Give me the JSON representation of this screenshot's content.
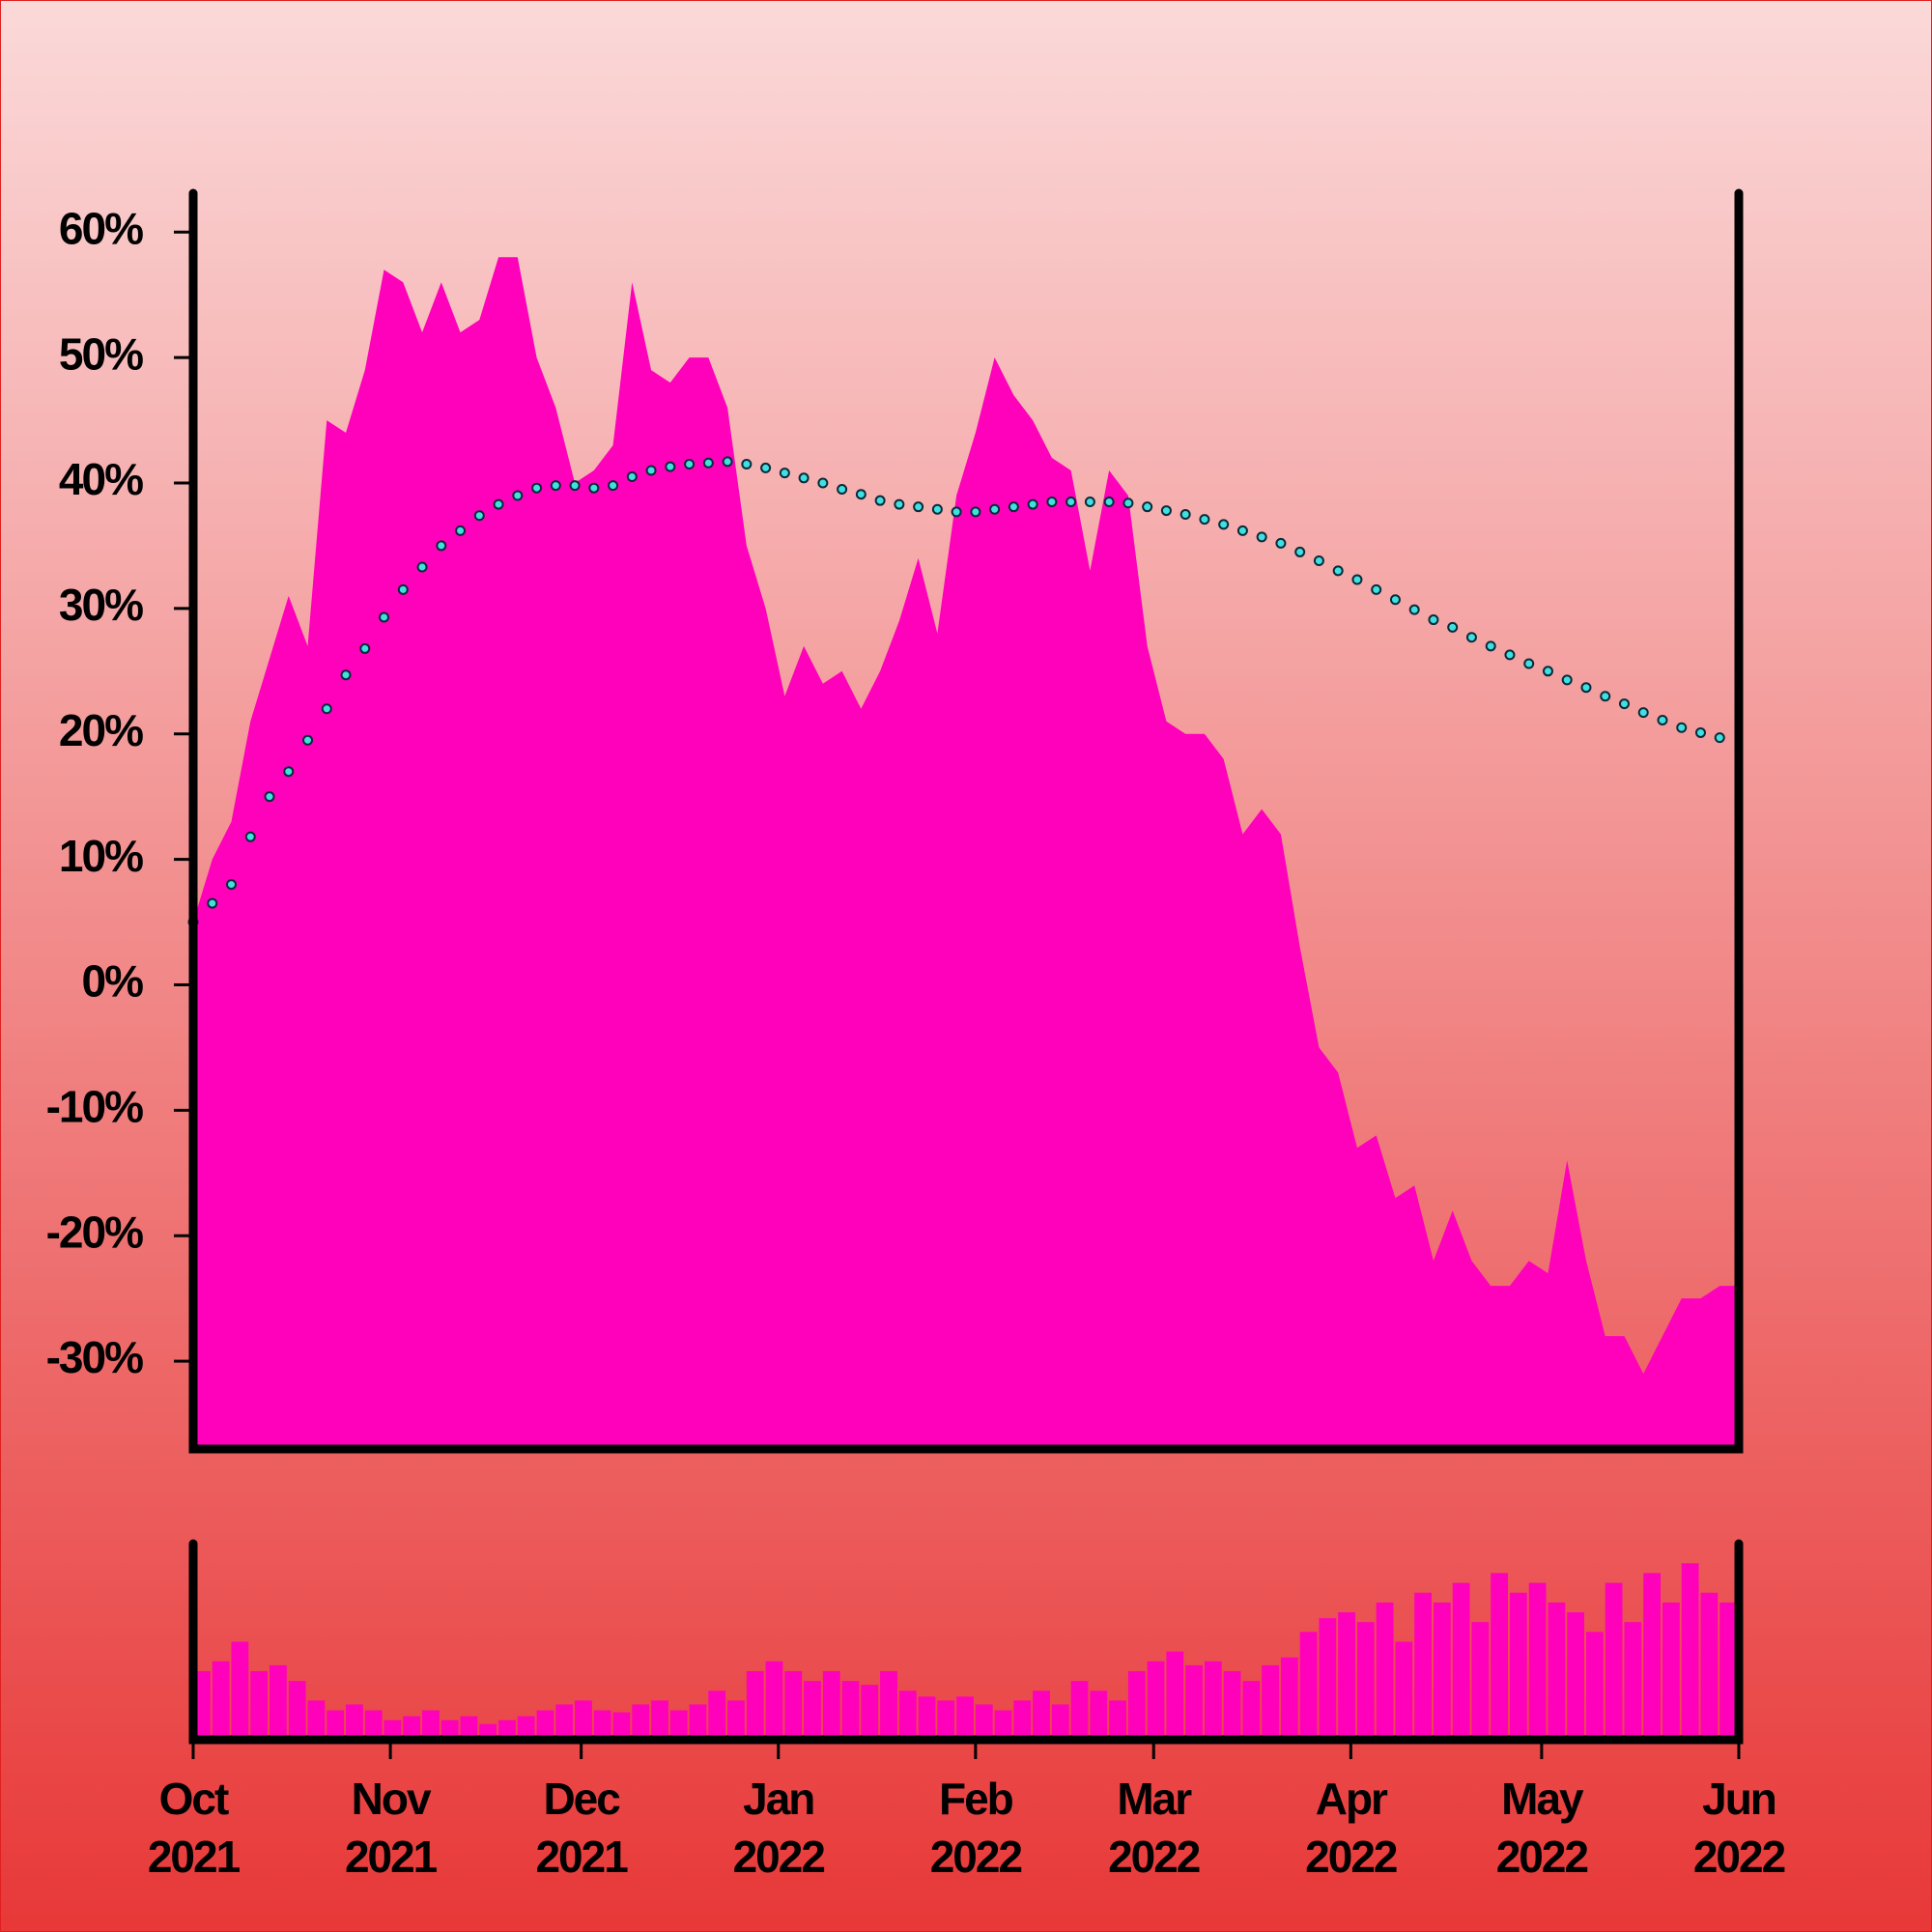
{
  "chart_data": {
    "type": "area",
    "x": [
      "2021-10-01",
      "2021-10-04",
      "2021-10-07",
      "2021-10-10",
      "2021-10-13",
      "2021-10-16",
      "2021-10-19",
      "2021-10-22",
      "2021-10-25",
      "2021-10-28",
      "2021-10-31",
      "2021-11-03",
      "2021-11-06",
      "2021-11-09",
      "2021-11-12",
      "2021-11-15",
      "2021-11-18",
      "2021-11-21",
      "2021-11-24",
      "2021-11-27",
      "2021-11-30",
      "2021-12-03",
      "2021-12-06",
      "2021-12-09",
      "2021-12-12",
      "2021-12-15",
      "2021-12-18",
      "2021-12-21",
      "2021-12-24",
      "2021-12-27",
      "2021-12-30",
      "2022-01-02",
      "2022-01-05",
      "2022-01-08",
      "2022-01-11",
      "2022-01-14",
      "2022-01-17",
      "2022-01-20",
      "2022-01-23",
      "2022-01-26",
      "2022-01-29",
      "2022-02-01",
      "2022-02-04",
      "2022-02-07",
      "2022-02-10",
      "2022-02-13",
      "2022-02-16",
      "2022-02-19",
      "2022-02-22",
      "2022-02-25",
      "2022-02-28",
      "2022-03-03",
      "2022-03-06",
      "2022-03-09",
      "2022-03-12",
      "2022-03-15",
      "2022-03-18",
      "2022-03-21",
      "2022-03-24",
      "2022-03-27",
      "2022-03-30",
      "2022-04-02",
      "2022-04-05",
      "2022-04-08",
      "2022-04-11",
      "2022-04-14",
      "2022-04-17",
      "2022-04-20",
      "2022-04-23",
      "2022-04-26",
      "2022-04-29",
      "2022-05-02",
      "2022-05-05",
      "2022-05-08",
      "2022-05-11",
      "2022-05-14",
      "2022-05-17",
      "2022-05-20",
      "2022-05-23",
      "2022-05-26",
      "2022-05-29"
    ],
    "series": [
      {
        "type": "area",
        "color": "#ff00bb",
        "values": [
          5,
          10,
          13,
          21,
          26,
          31,
          27,
          45,
          44,
          49,
          57,
          56,
          52,
          56,
          52,
          53,
          58,
          58,
          50,
          46,
          40,
          41,
          43,
          56,
          49,
          48,
          50,
          50,
          46,
          35,
          30,
          23,
          27,
          24,
          25,
          22,
          25,
          29,
          34,
          28,
          39,
          44,
          50,
          47,
          45,
          42,
          41,
          33,
          41,
          39,
          27,
          21,
          20,
          20,
          18,
          12,
          14,
          12,
          3,
          -5,
          -7,
          -13,
          -12,
          -17,
          -16,
          -22,
          -18,
          -22,
          -24,
          -24,
          -22,
          -23,
          -14,
          -22,
          -28,
          -28,
          -31,
          -28,
          -25,
          -25,
          -24
        ]
      },
      {
        "type": "dots",
        "color": "#40e0e0",
        "values": [
          5,
          6.5,
          8,
          11.8,
          15,
          17,
          19.5,
          22,
          24.7,
          26.8,
          29.3,
          31.5,
          33.3,
          35,
          36.2,
          37.4,
          38.3,
          39,
          39.6,
          39.8,
          39.8,
          39.6,
          39.8,
          40.5,
          41,
          41.3,
          41.5,
          41.6,
          41.7,
          41.5,
          41.2,
          40.8,
          40.4,
          40,
          39.5,
          39.1,
          38.6,
          38.3,
          38.1,
          37.9,
          37.7,
          37.7,
          37.9,
          38.1,
          38.3,
          38.5,
          38.5,
          38.5,
          38.5,
          38.4,
          38.1,
          37.8,
          37.5,
          37.1,
          36.7,
          36.2,
          35.7,
          35.2,
          34.5,
          33.8,
          33,
          32.3,
          31.5,
          30.7,
          29.9,
          29.1,
          28.5,
          27.7,
          27,
          26.3,
          25.6,
          25,
          24.3,
          23.7,
          23,
          22.4,
          21.7,
          21.1,
          20.5,
          20.1,
          19.7
        ]
      },
      {
        "type": "bar",
        "axis": "y2",
        "color": "#ff00bb",
        "values": [
          35,
          40,
          50,
          35,
          38,
          30,
          20,
          15,
          18,
          15,
          10,
          12,
          15,
          10,
          12,
          8,
          10,
          12,
          15,
          18,
          20,
          15,
          14,
          18,
          20,
          15,
          18,
          25,
          20,
          35,
          40,
          35,
          30,
          35,
          30,
          28,
          35,
          25,
          22,
          20,
          22,
          18,
          15,
          20,
          25,
          18,
          30,
          25,
          20,
          35,
          40,
          45,
          38,
          40,
          35,
          30,
          38,
          42,
          55,
          62,
          65,
          60,
          70,
          50,
          75,
          70,
          80,
          60,
          85,
          75,
          80,
          70,
          65,
          55,
          80,
          60,
          85,
          70,
          90,
          75,
          70
        ]
      }
    ],
    "xlim": [
      "2021-10-01",
      "2022-06-01"
    ],
    "xticks": [
      {
        "value": "2021-10-01",
        "label": "Oct 2021"
      },
      {
        "value": "2021-11-01",
        "label": "Nov 2021"
      },
      {
        "value": "2021-12-01",
        "label": "Dec 2021"
      },
      {
        "value": "2022-01-01",
        "label": "Jan 2022"
      },
      {
        "value": "2022-02-01",
        "label": "Feb 2022"
      },
      {
        "value": "2022-03-01",
        "label": "Mar 2022"
      },
      {
        "value": "2022-04-01",
        "label": "Apr 2022"
      },
      {
        "value": "2022-05-01",
        "label": "May 2022"
      },
      {
        "value": "2022-06-01",
        "label": "Jun 2022"
      }
    ],
    "ylim": [
      -37,
      63.1
    ],
    "yticks": [
      {
        "value": -30,
        "label": "-30%"
      },
      {
        "value": -20,
        "label": "-20%"
      },
      {
        "value": -10,
        "label": "-10%"
      },
      {
        "value": 0,
        "label": "0%"
      },
      {
        "value": 10,
        "label": "10%"
      },
      {
        "value": 20,
        "label": "20%"
      },
      {
        "value": 30,
        "label": "30%"
      },
      {
        "value": 40,
        "label": "40%"
      },
      {
        "value": 50,
        "label": "50%"
      },
      {
        "value": 60,
        "label": "60%"
      }
    ],
    "y2lim": [
      0,
      100
    ]
  }
}
